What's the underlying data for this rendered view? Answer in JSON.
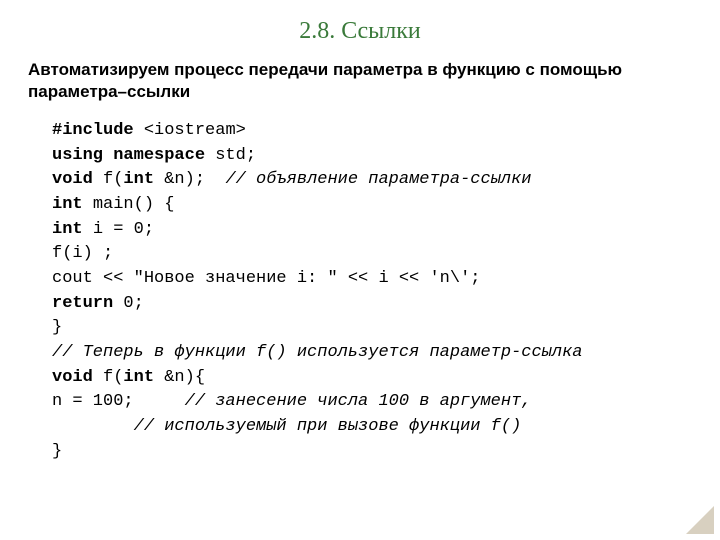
{
  "title": "2.8. Ссылки",
  "intro": "Автоматизируем процесс передачи параметра в функцию с помощью параметра–ссылки",
  "code": {
    "l1a": "#include ",
    "l1b": "<iostream>",
    "l2a": "using namespace ",
    "l2b": "std;",
    "l3a": "void ",
    "l3b": "f(",
    "l3c": "int ",
    "l3d": "&n);  ",
    "l3e": "// объявление параметра-ссылки",
    "l4a": "int ",
    "l4b": "main() {",
    "l5a": "int ",
    "l5b": "i = 0;",
    "l6": "f(i) ;",
    "l7": "cout << \"Новое значение i: \" << i << 'n\\';",
    "l8a": "return ",
    "l8b": "0;",
    "l9": "}",
    "l10": "// Теперь в функции f() используется параметр-ссылка",
    "l11a": "void ",
    "l11b": "f(",
    "l11c": "int ",
    "l11d": "&n){",
    "l12a": "n = 100;     ",
    "l12b": "// занесение числа 100 в аргумент,",
    "l13": "        // используемый при вызове функции f()",
    "l14": "}"
  },
  "colors": {
    "title": "#3a7a3a",
    "text": "#000000",
    "background": "#ffffff",
    "corner": "#d8d0c0"
  },
  "fonts": {
    "title_size": 24,
    "intro_size": 17,
    "code_size": 17
  }
}
